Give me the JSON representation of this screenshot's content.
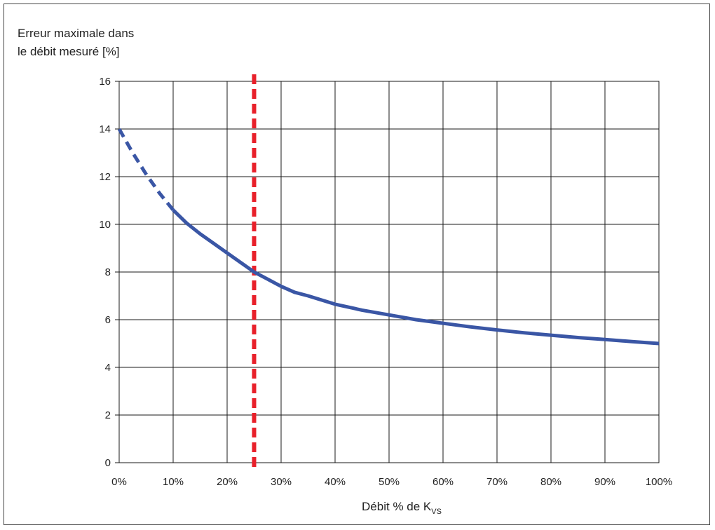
{
  "chart_data": {
    "type": "line",
    "title": "",
    "ylabel_lines": [
      "Erreur maximale dans",
      "le débit mesuré [%]"
    ],
    "xlabel": {
      "main": "Débit % de K",
      "sub": "VS"
    },
    "xlim": [
      0,
      100
    ],
    "ylim": [
      0,
      16
    ],
    "x_ticks": [
      0,
      10,
      20,
      30,
      40,
      50,
      60,
      70,
      80,
      90,
      100
    ],
    "x_tick_labels": [
      "0%",
      "10%",
      "20%",
      "30%",
      "40%",
      "50%",
      "60%",
      "70%",
      "80%",
      "90%",
      "100%"
    ],
    "y_ticks": [
      0,
      2,
      4,
      6,
      8,
      10,
      12,
      14,
      16
    ],
    "y_tick_labels": [
      "0",
      "2",
      "4",
      "6",
      "8",
      "10",
      "12",
      "14",
      "16"
    ],
    "grid": true,
    "series": [
      {
        "style": "dashed",
        "color": "#3a56a5",
        "x": [
          0,
          2.5,
          5,
          7.5,
          10
        ],
        "y": [
          14.0,
          13.0,
          12.1,
          11.3,
          10.6
        ]
      },
      {
        "style": "solid",
        "color": "#3a56a5",
        "x": [
          10,
          12.5,
          15,
          17.5,
          20,
          22.5,
          25,
          27.5,
          30,
          32.5,
          35,
          40,
          45,
          50,
          55,
          60,
          65,
          70,
          75,
          80,
          85,
          90,
          95,
          100
        ],
        "y": [
          10.6,
          10.05,
          9.6,
          9.2,
          8.8,
          8.4,
          8.0,
          7.7,
          7.4,
          7.15,
          7.0,
          6.65,
          6.4,
          6.2,
          6.0,
          5.85,
          5.7,
          5.57,
          5.45,
          5.35,
          5.25,
          5.17,
          5.08,
          5.0
        ]
      }
    ],
    "reference_line": {
      "x": 25,
      "style": "dashed",
      "color": "#e8202a"
    }
  }
}
